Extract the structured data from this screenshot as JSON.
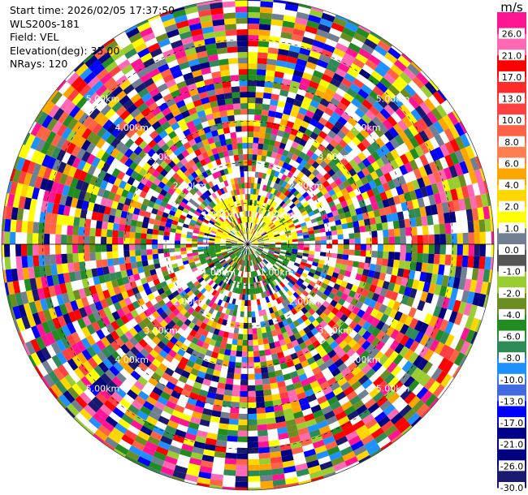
{
  "header": {
    "start_time": "Start time: 2026/02/05 17:37:50",
    "instrument": "WLS200s-181",
    "field": "Field: VEL",
    "elevation": "Elevation(deg): 35.00",
    "nrays": "NRays: 120"
  },
  "chart_data": {
    "type": "heatmap",
    "projection": "polar",
    "field": "VEL",
    "elevation_deg": 35.0,
    "n_rays": 120,
    "range_rings_km": [
      1,
      2,
      3,
      4,
      5
    ],
    "range_ring_labels": [
      "1.00km",
      "2.00km",
      "3.00km",
      "4.00km",
      "5.00km"
    ],
    "max_range_km": 6.0,
    "colorbar": {
      "unit": "m/s",
      "ticks": [
        "26.0",
        "21.0",
        "17.0",
        "13.0",
        "10.0",
        "8.0",
        "6.0",
        "4.0",
        "2.0",
        "1.0",
        "0.0",
        "-1.0",
        "-2.0",
        "-4.0",
        "-6.0",
        "-8.0",
        "-10.0",
        "-13.0",
        "-17.0",
        "-21.0",
        "-26.0",
        "-30.0"
      ],
      "colors": [
        "#ff1493",
        "#ff69b4",
        "#ff0000",
        "#ff2a2a",
        "#ff4040",
        "#ff6347",
        "#ff7f50",
        "#ffa500",
        "#ffd700",
        "#ffff00",
        "#708090",
        "#555555",
        "#9acd32",
        "#6b8e23",
        "#228b22",
        "#2e8b57",
        "#1e90ff",
        "#4169e1",
        "#0000ff",
        "#00008b",
        "#000080",
        "#191970"
      ]
    },
    "near_range_dominant_colors": {
      "north": "#ffff00",
      "south": "#228b22"
    }
  }
}
